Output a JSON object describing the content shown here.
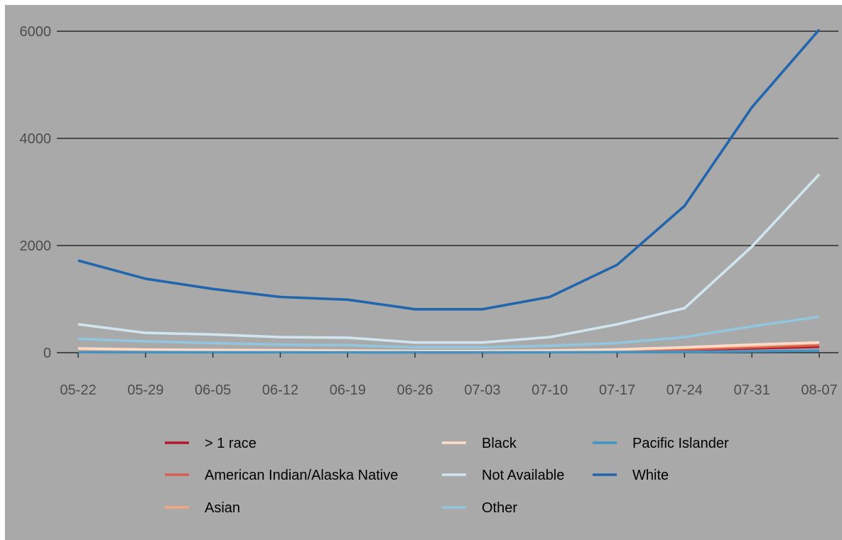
{
  "chart_data": {
    "type": "line",
    "title": "",
    "xlabel": "",
    "ylabel": "",
    "categories": [
      "05-22",
      "05-29",
      "06-05",
      "06-12",
      "06-19",
      "06-26",
      "07-03",
      "07-10",
      "07-17",
      "07-24",
      "07-31",
      "08-07"
    ],
    "ylim": [
      -100,
      6050
    ],
    "yticks": [
      0,
      2000,
      4000,
      6000
    ],
    "grid": "horizontal major",
    "legend_position": "bottom",
    "series": [
      {
        "name": "> 1 race",
        "color": "#b2182b",
        "values": [
          20,
          15,
          12,
          10,
          10,
          8,
          8,
          12,
          25,
          50,
          80,
          110
        ]
      },
      {
        "name": "American Indian/Alaska Native",
        "color": "#d6604d",
        "values": [
          20,
          15,
          12,
          10,
          10,
          8,
          8,
          15,
          30,
          60,
          100,
          140
        ]
      },
      {
        "name": "Asian",
        "color": "#f4a582",
        "values": [
          40,
          30,
          25,
          20,
          20,
          15,
          15,
          25,
          50,
          90,
          130,
          180
        ]
      },
      {
        "name": "Black",
        "color": "#fddbc7",
        "values": [
          80,
          60,
          50,
          45,
          40,
          30,
          30,
          40,
          60,
          100,
          150,
          190
        ]
      },
      {
        "name": "Not Available",
        "color": "#d1e5f0",
        "values": [
          530,
          370,
          340,
          290,
          280,
          190,
          190,
          290,
          530,
          830,
          1980,
          3330
        ]
      },
      {
        "name": "Other",
        "color": "#92c5de",
        "values": [
          260,
          210,
          180,
          150,
          140,
          100,
          100,
          130,
          180,
          290,
          490,
          670
        ]
      },
      {
        "name": "Pacific Islander",
        "color": "#4393c3",
        "values": [
          10,
          8,
          7,
          6,
          6,
          5,
          5,
          6,
          10,
          15,
          25,
          35
        ]
      },
      {
        "name": "White",
        "color": "#2166ac",
        "values": [
          1720,
          1380,
          1190,
          1040,
          990,
          810,
          810,
          1040,
          1640,
          2740,
          4580,
          6030
        ]
      }
    ]
  }
}
